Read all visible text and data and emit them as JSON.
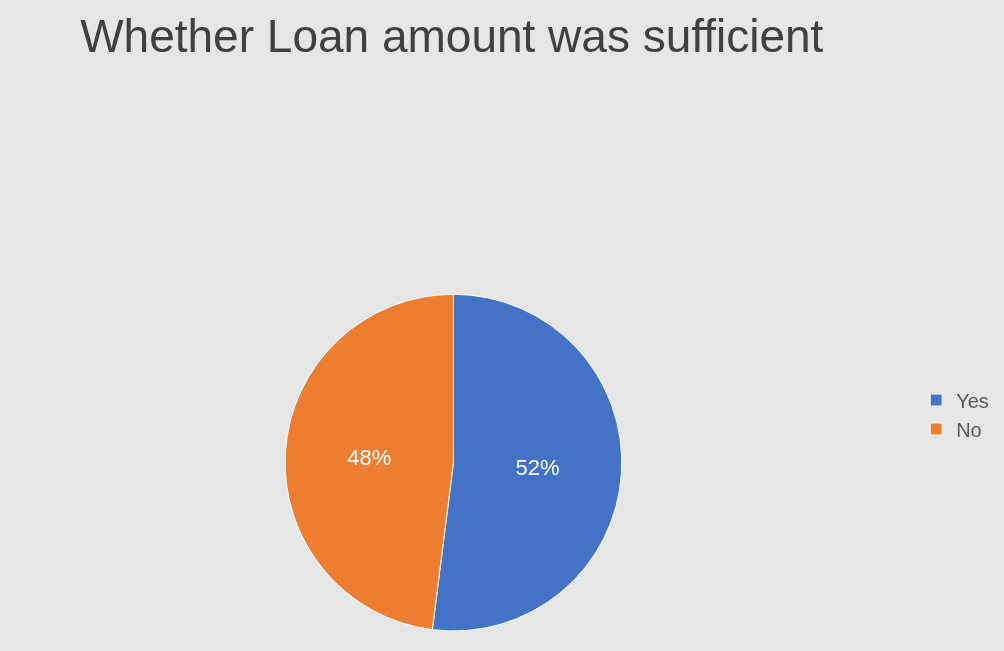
{
  "chart_data": {
    "type": "pie",
    "title": "Whether Loan amount was sufficient",
    "categories": [
      "Yes",
      "No"
    ],
    "values": [
      52,
      48
    ],
    "value_labels": [
      "52%",
      "48%"
    ],
    "colors": [
      "#4472c4",
      "#ed7d31"
    ],
    "legend": "right"
  }
}
